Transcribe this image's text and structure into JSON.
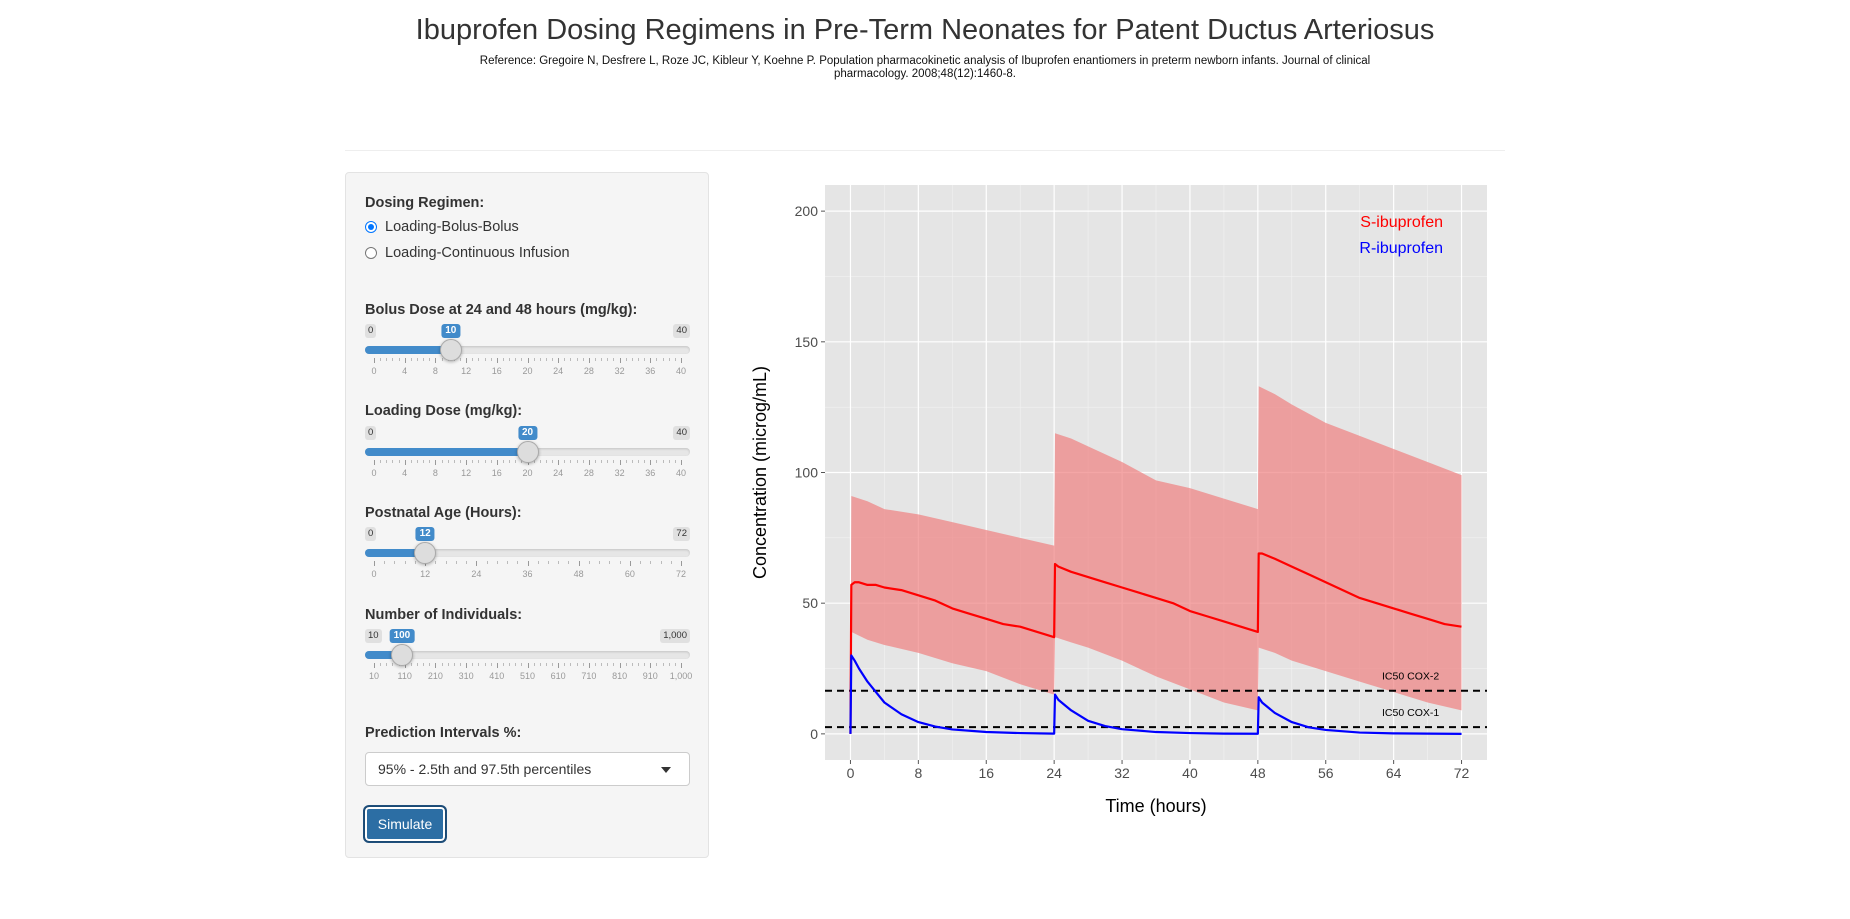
{
  "header": {
    "title": "Ibuprofen Dosing Regimens in Pre-Term Neonates for Patent Ductus Arteriosus",
    "reference": "Reference: Gregoire N, Desfrere L, Roze JC, Kibleur Y, Koehne P. Population pharmacokinetic analysis of Ibuprofen enantiomers in preterm newborn infants. Journal of clinical pharmacology. 2008;48(12):1460-8."
  },
  "sidebar": {
    "regimen": {
      "label": "Dosing Regimen:",
      "options": [
        "Loading-Bolus-Bolus",
        "Loading-Continuous Infusion"
      ],
      "selected": "Loading-Bolus-Bolus"
    },
    "sliders": [
      {
        "label": "Bolus Dose at 24 and 48 hours (mg/kg):",
        "min": 0,
        "max": 40,
        "value": 10,
        "min_label": "0",
        "max_label": "40",
        "value_label": "10",
        "ticks": [
          "0",
          "4",
          "8",
          "12",
          "16",
          "20",
          "24",
          "28",
          "32",
          "36",
          "40"
        ]
      },
      {
        "label": "Loading Dose (mg/kg):",
        "min": 0,
        "max": 40,
        "value": 20,
        "min_label": "0",
        "max_label": "40",
        "value_label": "20",
        "ticks": [
          "0",
          "4",
          "8",
          "12",
          "16",
          "20",
          "24",
          "28",
          "32",
          "36",
          "40"
        ]
      },
      {
        "label": "Postnatal Age (Hours):",
        "min": 0,
        "max": 72,
        "value": 12,
        "min_label": "0",
        "max_label": "72",
        "value_label": "12",
        "ticks": [
          "0",
          "12",
          "24",
          "36",
          "48",
          "60",
          "72"
        ]
      },
      {
        "label": "Number of Individuals:",
        "min": 10,
        "max": 1000,
        "value": 100,
        "min_label": "10",
        "max_label": "1,000",
        "value_label": "100",
        "ticks": [
          "10",
          "110",
          "210",
          "310",
          "410",
          "510",
          "610",
          "710",
          "810",
          "910",
          "1,000"
        ]
      }
    ],
    "prediction": {
      "label": "Prediction Intervals %:",
      "selected": "95% - 2.5th and 97.5th percentiles"
    },
    "simulate_label": "Simulate"
  },
  "chart_data": {
    "type": "line",
    "xlabel": "Time (hours)",
    "ylabel": "Concentration (microg/mL)",
    "xlim": [
      -3,
      75
    ],
    "ylim": [
      -10,
      210
    ],
    "xticks": [
      0,
      8,
      16,
      24,
      32,
      40,
      48,
      56,
      64,
      72
    ],
    "yticks": [
      0,
      50,
      100,
      150,
      200
    ],
    "legend_position": "top-right",
    "background": "#e5e5e5",
    "series": [
      {
        "name": "S-ibuprofen",
        "color": "#ff0000",
        "x": [
          0,
          0.1,
          0.5,
          1,
          2,
          3,
          4,
          6,
          8,
          10,
          12,
          14,
          16,
          18,
          20,
          22,
          24,
          24.1,
          24.5,
          26,
          28,
          30,
          32,
          34,
          36,
          38,
          40,
          42,
          44,
          46,
          48,
          48.1,
          48.5,
          50,
          52,
          54,
          56,
          58,
          60,
          62,
          64,
          66,
          68,
          70,
          72
        ],
        "values": [
          0,
          57,
          58,
          58,
          57,
          57,
          56,
          55,
          53,
          51,
          48,
          46,
          44,
          42,
          41,
          39,
          37,
          65,
          64,
          62,
          60,
          58,
          56,
          54,
          52,
          50,
          47,
          45,
          43,
          41,
          39,
          69,
          69,
          67,
          64,
          61,
          58,
          55,
          52,
          50,
          48,
          46,
          44,
          42,
          41
        ]
      },
      {
        "name": "R-ibuprofen",
        "color": "#0000ff",
        "x": [
          0,
          0.1,
          0.5,
          1,
          2,
          3,
          4,
          6,
          8,
          10,
          12,
          16,
          20,
          24,
          24.1,
          24.5,
          26,
          28,
          30,
          32,
          36,
          40,
          44,
          48,
          48.1,
          48.5,
          50,
          52,
          54,
          56,
          60,
          64,
          68,
          72
        ],
        "values": [
          0,
          30,
          28,
          25,
          20,
          16,
          12,
          7.5,
          4.5,
          2.8,
          1.7,
          0.7,
          0.3,
          0.1,
          15,
          13,
          9,
          5,
          3,
          1.8,
          0.7,
          0.3,
          0.1,
          0.05,
          14,
          12,
          8,
          4.5,
          2.5,
          1.5,
          0.5,
          0.2,
          0.1,
          0
        ]
      }
    ],
    "interval_band": {
      "series": "S-ibuprofen",
      "color": "#f08080",
      "x": [
        0,
        0.1,
        2,
        4,
        8,
        12,
        16,
        20,
        24,
        24.1,
        26,
        28,
        32,
        36,
        40,
        44,
        48,
        48.1,
        50,
        52,
        56,
        60,
        64,
        68,
        72
      ],
      "upper": [
        0,
        91,
        89,
        86,
        84,
        81,
        78,
        75,
        72,
        115,
        113,
        110,
        104,
        97,
        94,
        90,
        86,
        133,
        130,
        126,
        119,
        114,
        109,
        104,
        99
      ],
      "lower": [
        0,
        39,
        36,
        34,
        31,
        27,
        24,
        19,
        15,
        37,
        35,
        33,
        28,
        22,
        17,
        12,
        9,
        33,
        31,
        28,
        24,
        20,
        16,
        12,
        9
      ]
    },
    "reference_lines": [
      {
        "label": "IC50 COX-2",
        "y": 16.5
      },
      {
        "label": "IC50 COX-1",
        "y": 2.6
      }
    ]
  }
}
